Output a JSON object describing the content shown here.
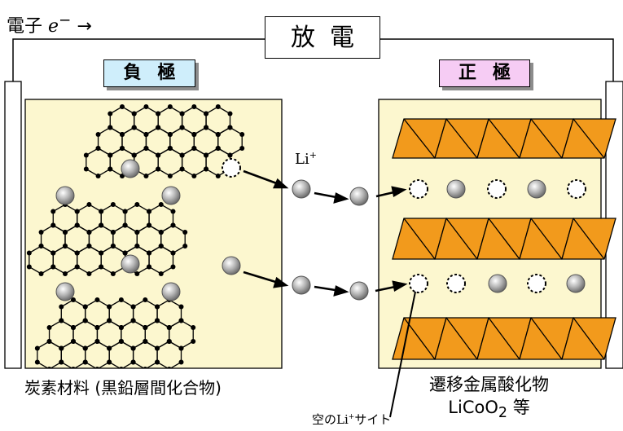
{
  "labels": {
    "electron_prefix": "電子 ",
    "electron_symbol": "e",
    "electron_sup": "−",
    "electron_arrow": " →",
    "discharge": "放電",
    "negative": "負極",
    "positive": "正極",
    "li_ion_base": "Li",
    "li_ion_sup": "+",
    "carbon": "炭素材料 (黒鉛層間化合物)",
    "oxide_line1": "遷移金属酸化物",
    "oxide_formula_base": "LiCoO",
    "oxide_formula_sub": "2",
    "oxide_formula_suffix": " 等",
    "vacant_prefix": "空の",
    "vacant_base": "Li",
    "vacant_sup": "+",
    "vacant_suffix": "サイト"
  },
  "colors": {
    "electrode_fill": "#fcf7cf",
    "negative_tag": "#cfeefb",
    "positive_tag": "#f6ccf4",
    "oxide_layer": "#f29a1c"
  }
}
